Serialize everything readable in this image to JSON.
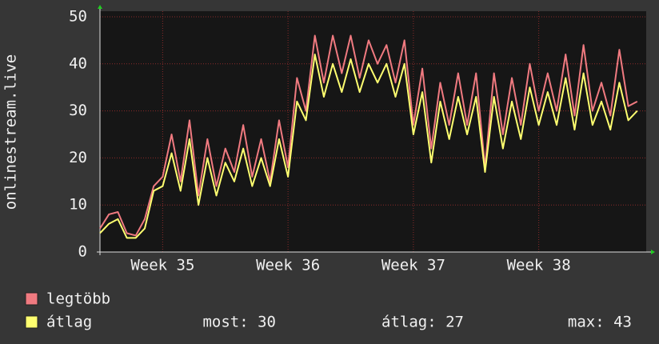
{
  "chart_data": {
    "type": "line",
    "ylabel": "onlinestream.live",
    "x": [
      0,
      0.5,
      1,
      1.5,
      2,
      2.5,
      3,
      3.5,
      4,
      4.5,
      5,
      5.5,
      6,
      6.5,
      7,
      7.5,
      8,
      8.5,
      9,
      9.5,
      10,
      10.5,
      11,
      11.5,
      12,
      12.5,
      13,
      13.5,
      14,
      14.5,
      15,
      15.5,
      16,
      16.5,
      17,
      17.5,
      18,
      18.5,
      19,
      19.5,
      20,
      20.5,
      21,
      21.5,
      22,
      22.5,
      23,
      23.5,
      24,
      24.5,
      25,
      25.5,
      26,
      26.5,
      27,
      27.5,
      28,
      28.5,
      29,
      29.5,
      30
    ],
    "series": [
      {
        "name": "legtöbb",
        "color": "#f07a80",
        "values": [
          5,
          8,
          8.5,
          4,
          3.5,
          7,
          14,
          16,
          25,
          15,
          28,
          12,
          24,
          14,
          22,
          17,
          27,
          16,
          24,
          15,
          28,
          18,
          37,
          30,
          46,
          36,
          46,
          38,
          46,
          37,
          45,
          40,
          44,
          36,
          45,
          27,
          39,
          22,
          36,
          27,
          38,
          27,
          38,
          18,
          38,
          25,
          37,
          27,
          40,
          30,
          38,
          30,
          42,
          29,
          44,
          30,
          36,
          29,
          43,
          31,
          32
        ]
      },
      {
        "name": "átlag",
        "color": "#ffff70",
        "values": [
          4,
          6,
          7,
          3,
          3,
          5,
          13,
          14,
          21,
          13,
          24,
          10,
          20,
          12,
          19,
          15,
          22,
          14,
          20,
          14,
          24,
          16,
          32,
          28,
          42,
          33,
          40,
          34,
          41,
          34,
          40,
          36,
          40,
          33,
          40,
          25,
          34,
          19,
          32,
          24,
          33,
          25,
          33,
          17,
          33,
          22,
          32,
          24,
          35,
          27,
          34,
          27,
          37,
          26,
          38,
          27,
          32,
          26,
          36,
          28,
          30
        ]
      }
    ],
    "xlim": [
      0,
      30.5
    ],
    "xticks": [
      {
        "value": 3.5,
        "label": "Week 35"
      },
      {
        "value": 10.5,
        "label": "Week 36"
      },
      {
        "value": 17.5,
        "label": "Week 37"
      },
      {
        "value": 24.5,
        "label": "Week 38"
      }
    ],
    "ylim": [
      0,
      50
    ],
    "yticks": [
      0,
      10,
      20,
      30,
      40,
      50
    ],
    "grid": true,
    "stats": [
      "most: 30",
      "átlag: 27",
      "max: 43"
    ]
  }
}
